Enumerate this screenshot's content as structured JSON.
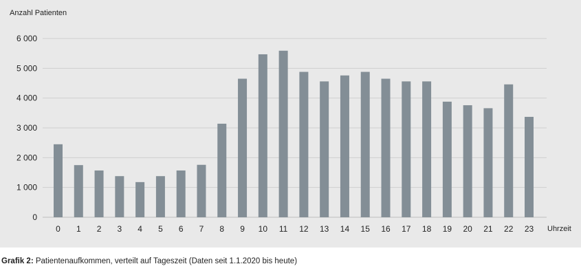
{
  "chart_data": {
    "type": "bar",
    "ylabel": "Anzahl Patienten",
    "xlabel": "Uhrzeit",
    "categories": [
      "0",
      "1",
      "2",
      "3",
      "4",
      "5",
      "6",
      "7",
      "8",
      "9",
      "10",
      "11",
      "12",
      "13",
      "14",
      "15",
      "16",
      "17",
      "18",
      "19",
      "20",
      "21",
      "22",
      "23"
    ],
    "values": [
      2450,
      1750,
      1570,
      1380,
      1180,
      1380,
      1570,
      1760,
      3140,
      4650,
      5470,
      5590,
      4880,
      4560,
      4760,
      4880,
      4650,
      4560,
      4560,
      3880,
      3760,
      3660,
      4460,
      3370
    ],
    "ylim": [
      0,
      6000
    ],
    "yticks": [
      0,
      1000,
      2000,
      3000,
      4000,
      5000,
      6000
    ],
    "ytick_labels": [
      "0",
      "1 000",
      "2 000",
      "3 000",
      "4 000",
      "5 000",
      "6 000"
    ],
    "grid": true,
    "bar_color": "#838e96",
    "grid_color": "#cfcfcf"
  },
  "caption": {
    "label": "Grafik 2:",
    "text": " Patientenaufkommen, verteilt auf Tageszeit (Daten seit 1.1.2020 bis heute)"
  }
}
